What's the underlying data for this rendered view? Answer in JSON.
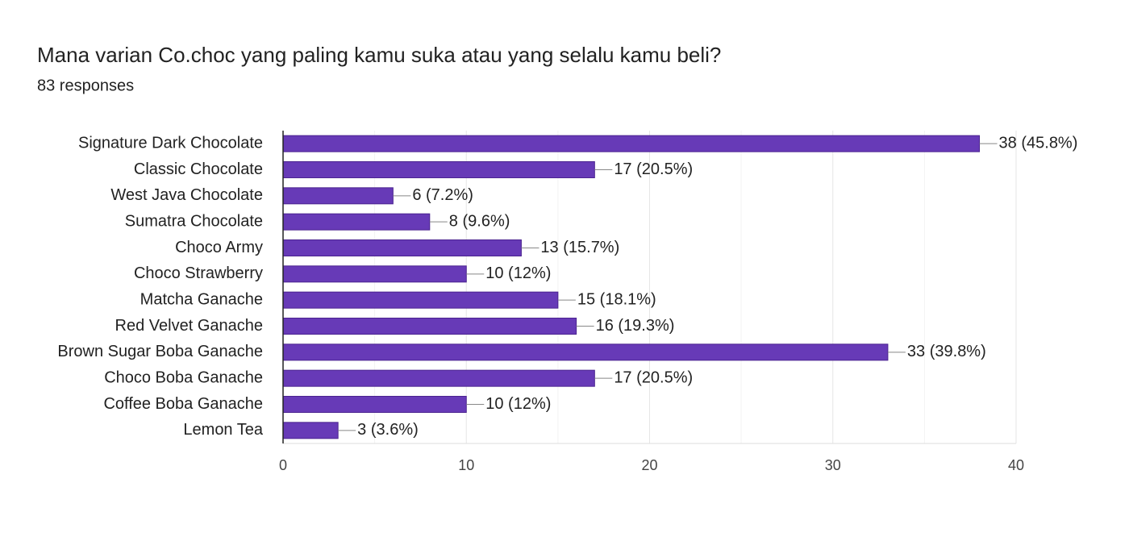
{
  "chart_data": {
    "type": "hbar",
    "title": "Mana varian Co.choc yang paling kamu suka atau yang selalu kamu beli?",
    "subtitle": "83 responses",
    "categories": [
      "Signature Dark Chocolate",
      "Classic Chocolate",
      "West Java Chocolate",
      "Sumatra Chocolate",
      "Choco Army",
      "Choco Strawberry",
      "Matcha Ganache",
      "Red Velvet Ganache",
      "Brown Sugar Boba Ganache",
      "Choco Boba Ganache",
      "Coffee Boba Ganache",
      "Lemon Tea"
    ],
    "values": [
      38,
      17,
      6,
      8,
      13,
      10,
      15,
      16,
      33,
      17,
      10,
      3
    ],
    "value_labels": [
      "38 (45.8%)",
      "17 (20.5%)",
      "6 (7.2%)",
      "8 (9.6%)",
      "13 (15.7%)",
      "10 (12%)",
      "15 (18.1%)",
      "16 (19.3%)",
      "33 (39.8%)",
      "17 (20.5%)",
      "10 (12%)",
      "3 (3.6%)"
    ],
    "color": "#673ab7",
    "xlim": [
      0,
      40
    ],
    "xticks": [
      0,
      10,
      20,
      30,
      40
    ],
    "xminorticks": [
      5,
      15,
      25,
      35
    ],
    "grid": true
  }
}
